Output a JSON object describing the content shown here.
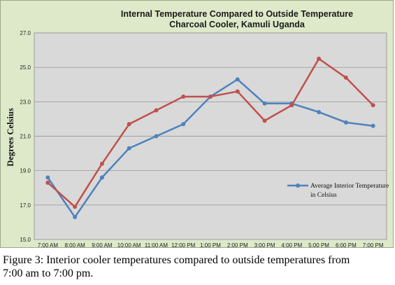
{
  "chart_data": {
    "type": "line",
    "title": "Internal Temperature Compared to Outside Temperature",
    "subtitle": "Charcoal Cooler, Kamuli Uganda",
    "xlabel": "",
    "ylabel": "Degrees Celsius",
    "categories": [
      "7:00 AM",
      "8:00 AM",
      "9:00 AM",
      "10:00 AM",
      "11:00 AM",
      "12:00 PM",
      "1:00 PM",
      "2:00 PM",
      "3:00 PM",
      "4:00 PM",
      "5:00 PM",
      "6:00 PM",
      "7:00 PM"
    ],
    "yticks": [
      "15.0",
      "17.0",
      "19.0",
      "21.0",
      "23.0",
      "25.0",
      "27.0"
    ],
    "ylim": [
      15,
      27
    ],
    "grid": true,
    "legend_position": "right",
    "series": [
      {
        "name": "Average Interior Temperature in Celsius",
        "color": "#4f81bd",
        "values": [
          18.6,
          16.3,
          18.6,
          20.3,
          21.0,
          21.7,
          23.3,
          24.3,
          22.9,
          22.9,
          22.4,
          21.8,
          21.6
        ]
      },
      {
        "name": "",
        "color": "#c0504d",
        "values": [
          18.3,
          16.9,
          19.4,
          21.7,
          22.5,
          23.3,
          23.3,
          23.6,
          21.9,
          22.8,
          25.5,
          24.4,
          22.8
        ]
      }
    ],
    "legend": {
      "line1": "Average Interior Temperature",
      "line2": "in Celsius"
    }
  },
  "caption": {
    "line1": "Figure 3: Interior cooler temperatures compared to outside temperatures from",
    "line2": "7:00 am to 7:00 pm."
  }
}
